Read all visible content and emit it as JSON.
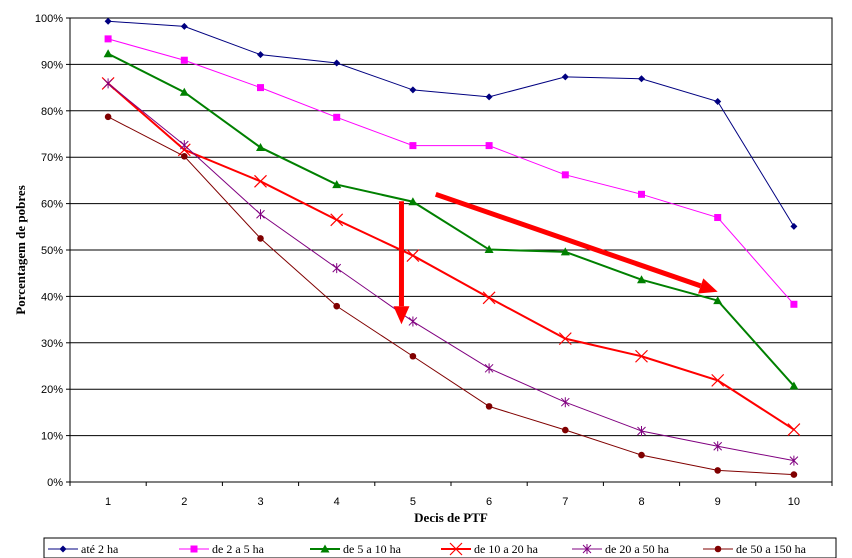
{
  "chart_data": {
    "type": "line",
    "xlabel": "Decis de PTF",
    "ylabel": "Porcentagem de pobres",
    "categories": [
      "1",
      "2",
      "3",
      "4",
      "5",
      "6",
      "7",
      "8",
      "9",
      "10"
    ],
    "ylim": [
      0,
      100
    ],
    "yticks": [
      "0%",
      "10%",
      "20%",
      "30%",
      "40%",
      "50%",
      "60%",
      "70%",
      "80%",
      "90%",
      "100%"
    ],
    "grid": "horizontal",
    "legend_position": "bottom",
    "series": [
      {
        "name": "até 2 ha",
        "color": "#000080",
        "marker": "diamond",
        "width": 1,
        "values": [
          99.3,
          98.2,
          92.1,
          90.3,
          84.5,
          83.0,
          87.3,
          86.9,
          82.0,
          55.1
        ]
      },
      {
        "name": "de 2 a 5 ha",
        "color": "#ff00ff",
        "marker": "square",
        "width": 1,
        "values": [
          95.5,
          90.9,
          85.0,
          78.6,
          72.5,
          72.5,
          66.2,
          62.0,
          57.0,
          38.3
        ]
      },
      {
        "name": "de 5 a 10 ha",
        "color": "#008000",
        "marker": "triangle",
        "width": 2,
        "values": [
          92.3,
          84.0,
          72.1,
          64.1,
          60.4,
          50.1,
          49.6,
          43.6,
          39.1,
          20.7
        ]
      },
      {
        "name": "de 10 a 20 ha",
        "color": "#ff0000",
        "marker": "x",
        "width": 2,
        "values": [
          85.9,
          71.6,
          64.8,
          56.5,
          48.8,
          39.7,
          30.9,
          27.1,
          21.9,
          11.3
        ]
      },
      {
        "name": "de 20 a 50 ha",
        "color": "#800080",
        "marker": "star",
        "width": 1,
        "values": [
          85.9,
          72.6,
          57.7,
          46.1,
          34.6,
          24.5,
          17.2,
          11.0,
          7.7,
          4.6
        ]
      },
      {
        "name": "de 50 a 150 ha",
        "color": "#800000",
        "marker": "circle",
        "width": 1,
        "values": [
          78.7,
          70.2,
          52.5,
          37.9,
          27.1,
          16.3,
          11.2,
          5.8,
          2.5,
          1.6
        ]
      }
    ],
    "annotations": [
      {
        "type": "arrow",
        "color": "#ff0000",
        "from": [
          5.3,
          62.0
        ],
        "to": [
          9.0,
          41.0
        ]
      },
      {
        "type": "arrow",
        "color": "#ff0000",
        "from": [
          4.85,
          60.5
        ],
        "to": [
          4.85,
          34.0
        ]
      }
    ]
  }
}
